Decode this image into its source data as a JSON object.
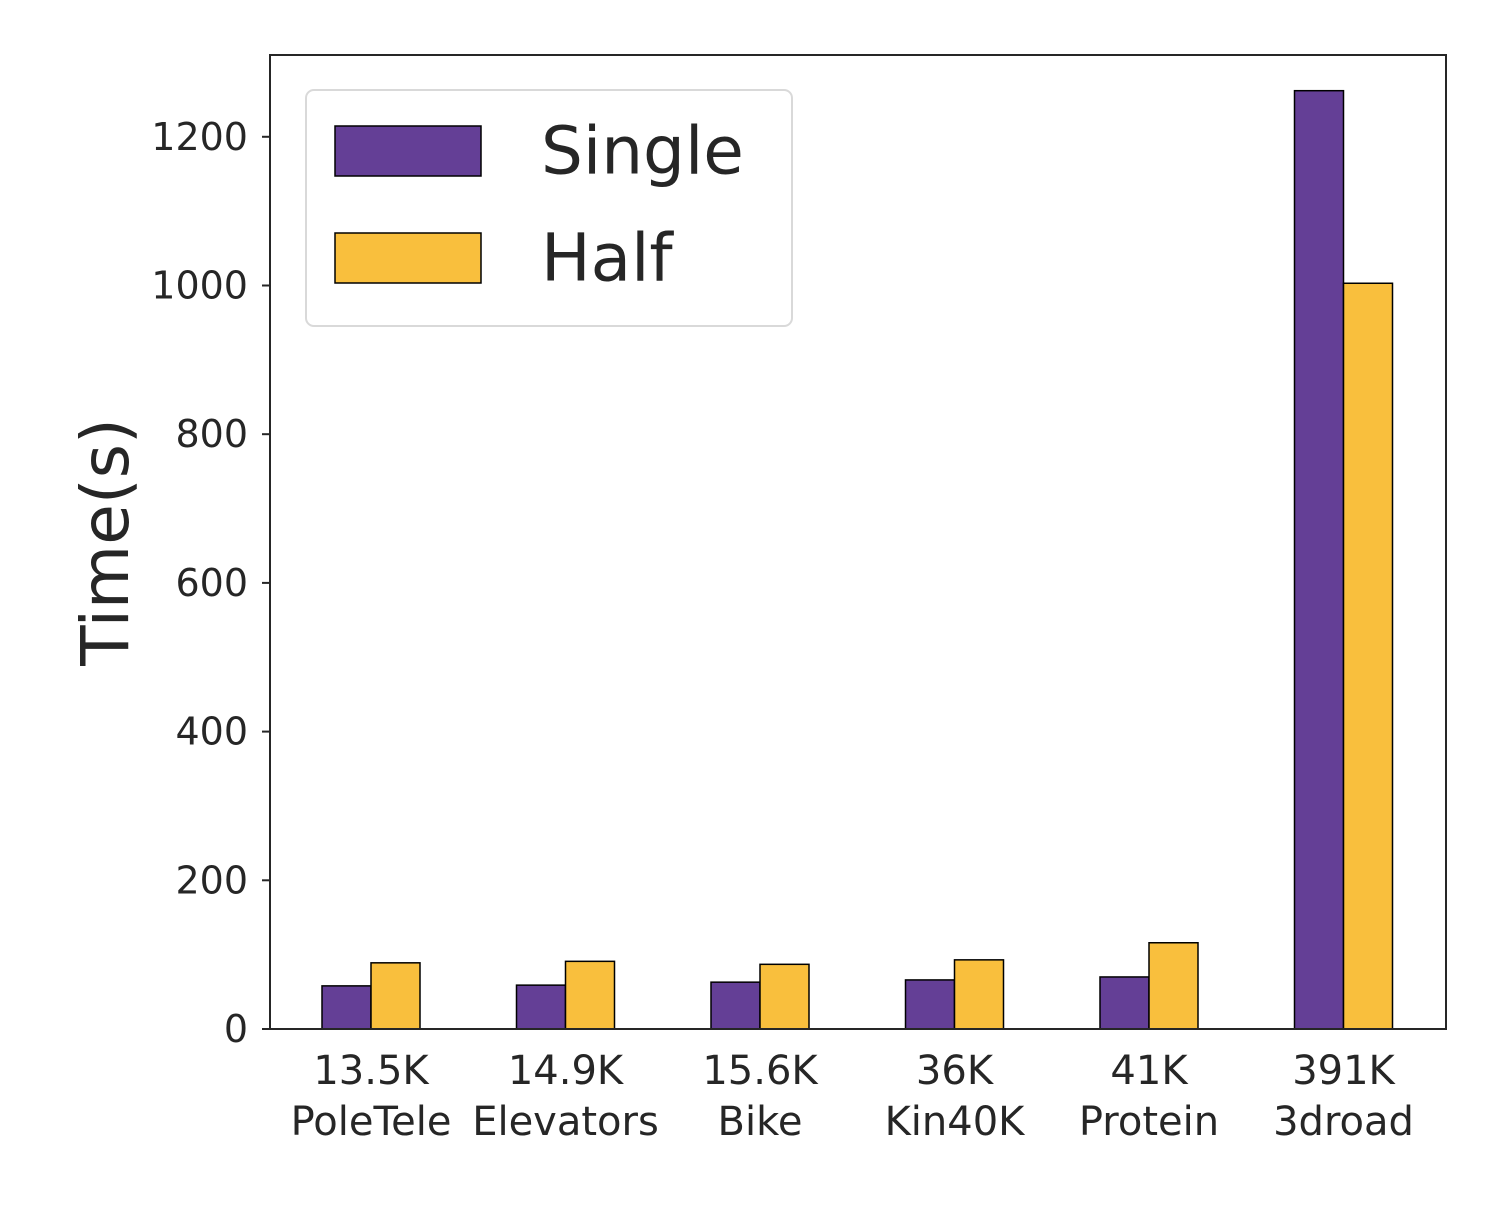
{
  "chart_data": {
    "type": "bar",
    "ylabel": "Time(s)",
    "xlabel": "",
    "ylim": [
      0,
      1310
    ],
    "yticks": [
      0,
      200,
      400,
      600,
      800,
      1000,
      1200
    ],
    "grid": false,
    "legend_position": "top-left",
    "categories": [
      {
        "size": "13.5K",
        "name": "PoleTele"
      },
      {
        "size": "14.9K",
        "name": "Elevators"
      },
      {
        "size": "15.6K",
        "name": "Bike"
      },
      {
        "size": "36K",
        "name": "Kin40K"
      },
      {
        "size": "41K",
        "name": "Protein"
      },
      {
        "size": "391K",
        "name": "3droad"
      }
    ],
    "series": [
      {
        "name": "Single",
        "color": "#643f96",
        "values": [
          58,
          59,
          63,
          66,
          70,
          1262
        ]
      },
      {
        "name": "Half",
        "color": "#f9bf3d",
        "values": [
          89,
          91,
          87,
          93,
          116,
          1003
        ]
      }
    ]
  }
}
